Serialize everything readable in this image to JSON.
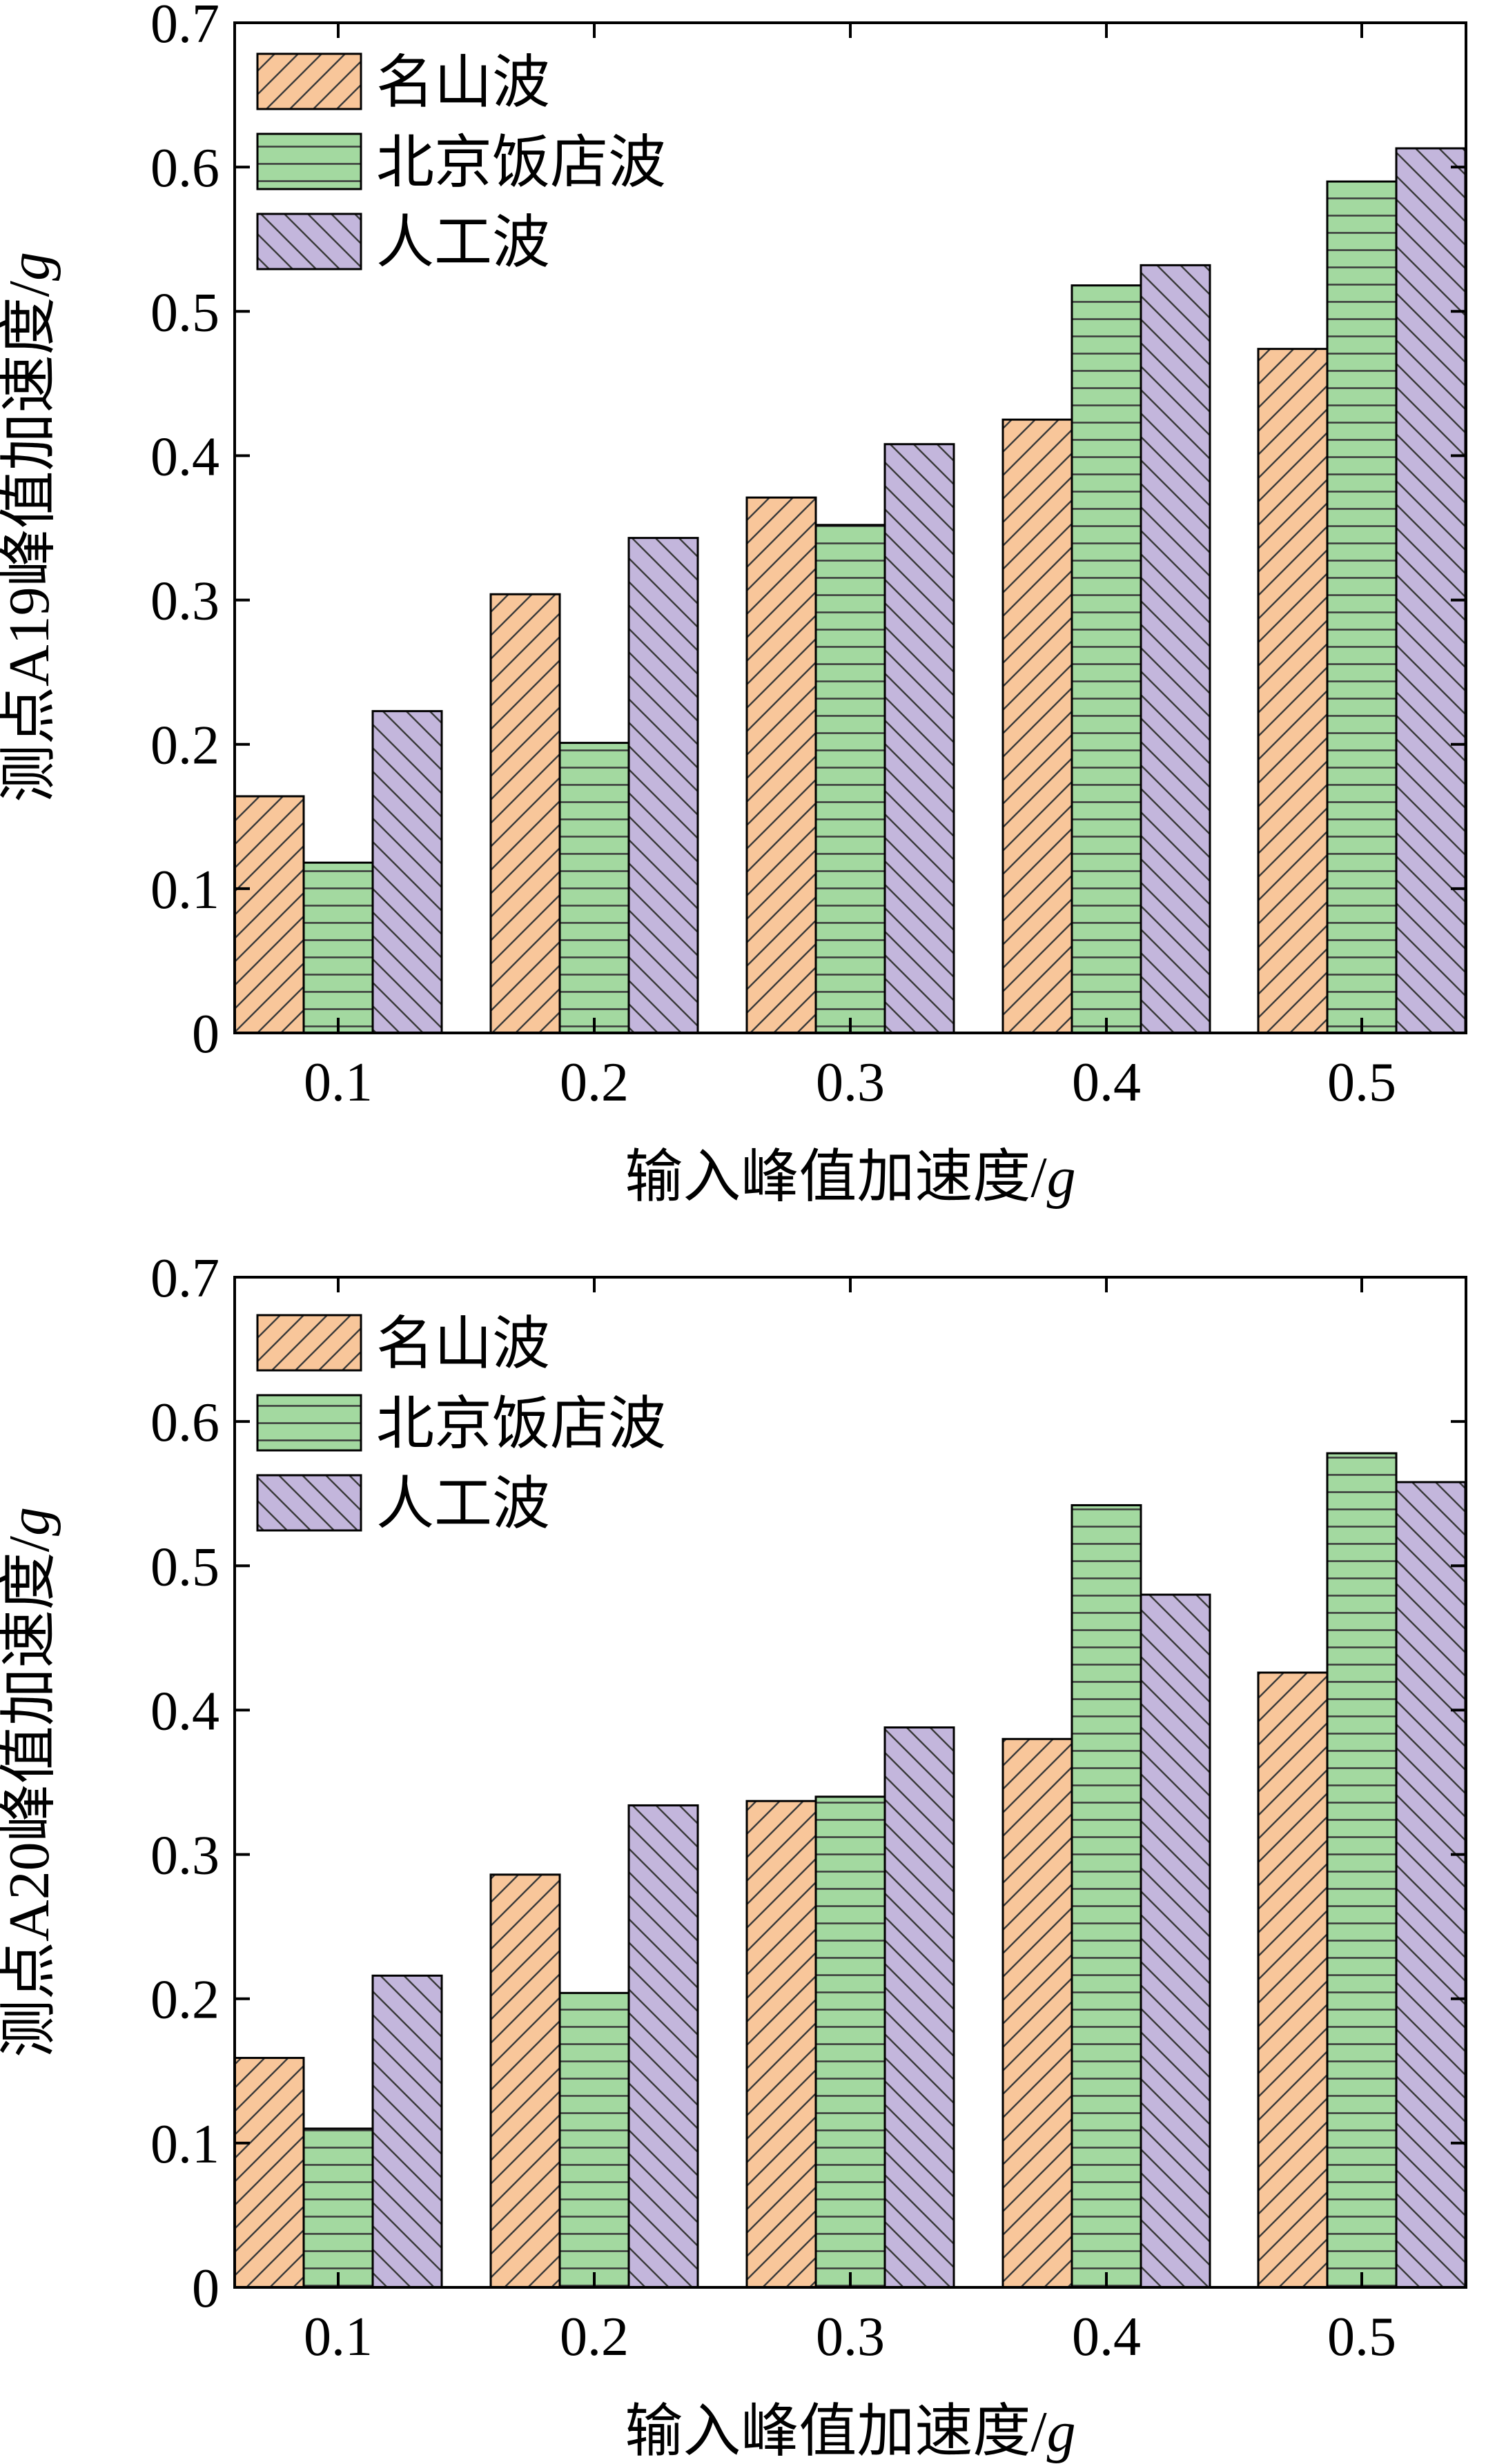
{
  "colors": {
    "mingshan": "#f8c69a",
    "beijing": "#a3d9a0",
    "artificial": "#c3b6dc",
    "axis": "#000000"
  },
  "legend": [
    "名山波",
    "北京饭店波",
    "人工波"
  ],
  "chart_data": [
    {
      "type": "bar",
      "title": "",
      "xlabel": "输入峰值加速度/",
      "xlabel_unit": "g",
      "ylabel": "测点A19峰值加速度/",
      "ylabel_unit": "g",
      "ylim": [
        0,
        0.7
      ],
      "yticks": [
        "0",
        "0.1",
        "0.2",
        "0.3",
        "0.4",
        "0.5",
        "0.6",
        "0.7"
      ],
      "categories": [
        "0.1",
        "0.2",
        "0.3",
        "0.4",
        "0.5"
      ],
      "legend_position": "top-left",
      "grid": false,
      "series": [
        {
          "name": "名山波",
          "values": [
            0.164,
            0.304,
            0.371,
            0.425,
            0.474
          ]
        },
        {
          "name": "北京饭店波",
          "values": [
            0.118,
            0.201,
            0.352,
            0.518,
            0.59
          ]
        },
        {
          "name": "人工波",
          "values": [
            0.223,
            0.343,
            0.408,
            0.532,
            0.613
          ]
        }
      ]
    },
    {
      "type": "bar",
      "title": "",
      "xlabel": "输入峰值加速度/",
      "xlabel_unit": "g",
      "ylabel": "测点A20峰值加速度/",
      "ylabel_unit": "g",
      "ylim": [
        0,
        0.7
      ],
      "yticks": [
        "0",
        "0.1",
        "0.2",
        "0.3",
        "0.4",
        "0.5",
        "0.6",
        "0.7"
      ],
      "categories": [
        "0.1",
        "0.2",
        "0.3",
        "0.4",
        "0.5"
      ],
      "legend_position": "top-left",
      "grid": false,
      "series": [
        {
          "name": "名山波",
          "values": [
            0.159,
            0.286,
            0.337,
            0.38,
            0.426
          ]
        },
        {
          "name": "北京饭店波",
          "values": [
            0.11,
            0.204,
            0.34,
            0.542,
            0.578
          ]
        },
        {
          "name": "人工波",
          "values": [
            0.216,
            0.334,
            0.388,
            0.48,
            0.558
          ]
        }
      ]
    }
  ]
}
